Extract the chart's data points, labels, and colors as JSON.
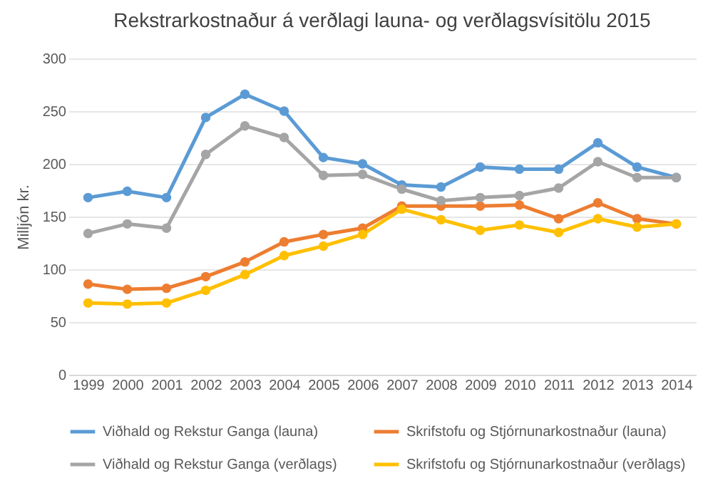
{
  "chart_data": {
    "type": "line",
    "title": "Rekstrarkostnaður á verðlagi launa- og verðlagsvísitölu 2015",
    "ylabel": "Milljón kr.",
    "categories": [
      "1999",
      "2000",
      "2001",
      "2002",
      "2003",
      "2004",
      "2005",
      "2006",
      "2007",
      "2008",
      "2009",
      "2010",
      "2011",
      "2012",
      "2013",
      "2014"
    ],
    "series": [
      {
        "name": "Viðhald og Rekstur Ganga (launa)",
        "color": "#5b9bd5",
        "values": [
          168,
          174,
          168,
          244,
          266,
          250,
          206,
          200,
          180,
          178,
          197,
          195,
          195,
          220,
          197,
          187
        ]
      },
      {
        "name": "Skrifstofu og Stjórnunarkostnaður (launa)",
        "color": "#ed7d31",
        "values": [
          86,
          81,
          82,
          93,
          107,
          126,
          133,
          139,
          160,
          160,
          160,
          161,
          148,
          163,
          148,
          143
        ]
      },
      {
        "name": "Viðhald og Rekstur Ganga (verðlags)",
        "color": "#a5a5a5",
        "values": [
          134,
          143,
          139,
          209,
          236,
          225,
          189,
          190,
          176,
          165,
          168,
          170,
          177,
          202,
          187,
          187
        ]
      },
      {
        "name": "Skrifstofu og Stjórnunarkostnaður (verðlags)",
        "color": "#ffc000",
        "values": [
          68,
          67,
          68,
          80,
          95,
          113,
          122,
          133,
          157,
          147,
          137,
          142,
          135,
          148,
          140,
          143
        ]
      }
    ],
    "ylim": [
      0,
      300
    ],
    "yticks": [
      0,
      50,
      100,
      150,
      200,
      250,
      300
    ],
    "grid": "y",
    "legend": "bottom",
    "marker": "circle",
    "line_style": "solid"
  }
}
